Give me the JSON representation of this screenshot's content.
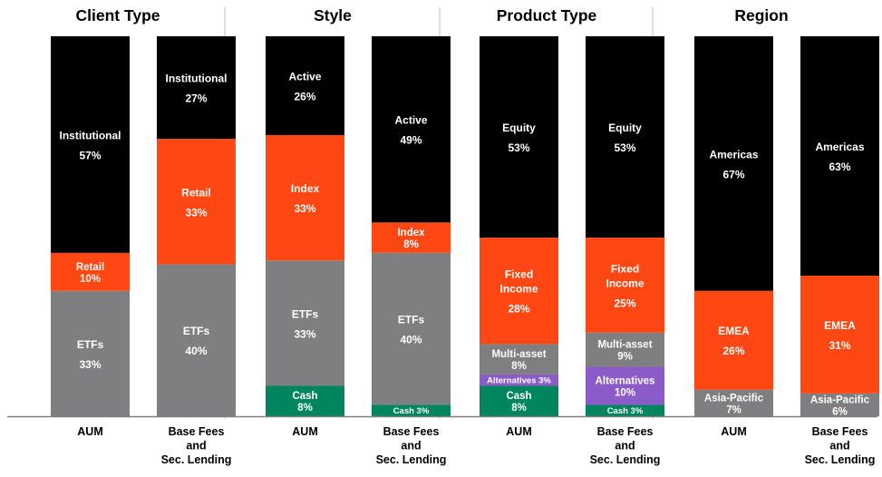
{
  "colors": {
    "black": "#000000",
    "orange": "#ff4713",
    "gray": "#7f7e80",
    "green": "#00855f",
    "purple": "#8b5cc8",
    "white": "#ffffff",
    "divider": "#bfbfbf"
  },
  "chart_data": [
    {
      "type": "bar",
      "stacked": true,
      "normalized_percent": true,
      "title": "Client Type",
      "categories": [
        "AUM",
        "Base Fees and Sec. Lending"
      ],
      "category_label_lines": [
        [
          "AUM"
        ],
        [
          "Base Fees",
          "and",
          "Sec. Lending"
        ]
      ],
      "series": [
        {
          "name": "ETFs",
          "values": [
            33,
            40
          ],
          "color": "gray"
        },
        {
          "name": "Retail",
          "values": [
            10,
            33
          ],
          "color": "orange"
        },
        {
          "name": "Institutional",
          "values": [
            57,
            27
          ],
          "color": "black"
        }
      ]
    },
    {
      "type": "bar",
      "stacked": true,
      "normalized_percent": true,
      "title": "Style",
      "categories": [
        "AUM",
        "Base Fees and Sec. Lending"
      ],
      "category_label_lines": [
        [
          "AUM"
        ],
        [
          "Base Fees",
          "and",
          "Sec. Lending"
        ]
      ],
      "series": [
        {
          "name": "Cash",
          "values": [
            8,
            3
          ],
          "color": "green"
        },
        {
          "name": "ETFs",
          "values": [
            33,
            40
          ],
          "color": "gray"
        },
        {
          "name": "Index",
          "values": [
            33,
            8
          ],
          "color": "orange"
        },
        {
          "name": "Active",
          "values": [
            26,
            49
          ],
          "color": "black"
        }
      ]
    },
    {
      "type": "bar",
      "stacked": true,
      "normalized_percent": true,
      "title": "Product Type",
      "categories": [
        "AUM",
        "Base Fees and Sec. Lending"
      ],
      "category_label_lines": [
        [
          "AUM"
        ],
        [
          "Base Fees",
          "and",
          "Sec. Lending"
        ]
      ],
      "series": [
        {
          "name": "Cash",
          "values": [
            8,
            3
          ],
          "color": "green"
        },
        {
          "name": "Alternatives",
          "values": [
            3,
            10
          ],
          "color": "purple"
        },
        {
          "name": "Multi-asset",
          "values": [
            8,
            9
          ],
          "color": "gray"
        },
        {
          "name": "Fixed Income",
          "values": [
            28,
            25
          ],
          "color": "orange"
        },
        {
          "name": "Equity",
          "values": [
            53,
            53
          ],
          "color": "black"
        }
      ]
    },
    {
      "type": "bar",
      "stacked": true,
      "normalized_percent": true,
      "title": "Region",
      "categories": [
        "AUM",
        "Base Fees and Sec. Lending"
      ],
      "category_label_lines": [
        [
          "AUM"
        ],
        [
          "Base Fees",
          "and",
          "Sec. Lending"
        ]
      ],
      "series": [
        {
          "name": "Asia-Pacific",
          "values": [
            7,
            6
          ],
          "color": "gray"
        },
        {
          "name": "EMEA",
          "values": [
            26,
            31
          ],
          "color": "orange"
        },
        {
          "name": "Americas",
          "values": [
            67,
            63
          ],
          "color": "black"
        }
      ]
    }
  ]
}
